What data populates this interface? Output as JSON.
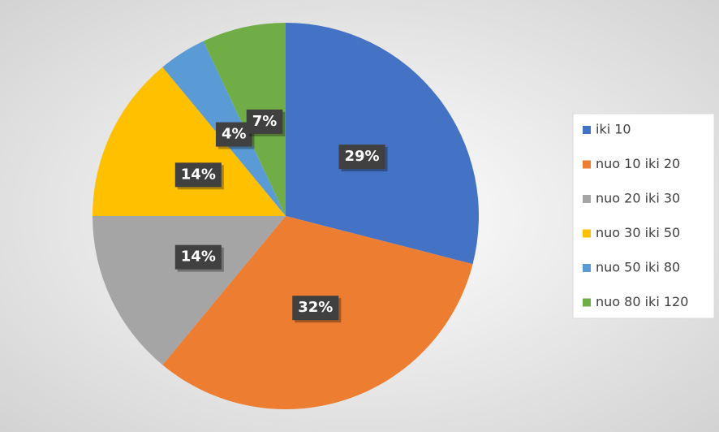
{
  "chart_data": {
    "type": "pie",
    "categories": [
      "iki 10",
      "nuo 10 iki 20",
      "nuo 20 iki 30",
      "nuo 30 iki 50",
      "nuo 50 iki 80",
      "nuo 80 iki 120"
    ],
    "values": [
      29,
      32,
      14,
      14,
      4,
      7
    ],
    "value_labels": [
      "29%",
      "32%",
      "14%",
      "14%",
      "4%",
      "7%"
    ],
    "colors": [
      "#4472c4",
      "#ed7d31",
      "#a5a5a5",
      "#ffc000",
      "#5b9bd5",
      "#70ad47"
    ],
    "legend": "right"
  }
}
